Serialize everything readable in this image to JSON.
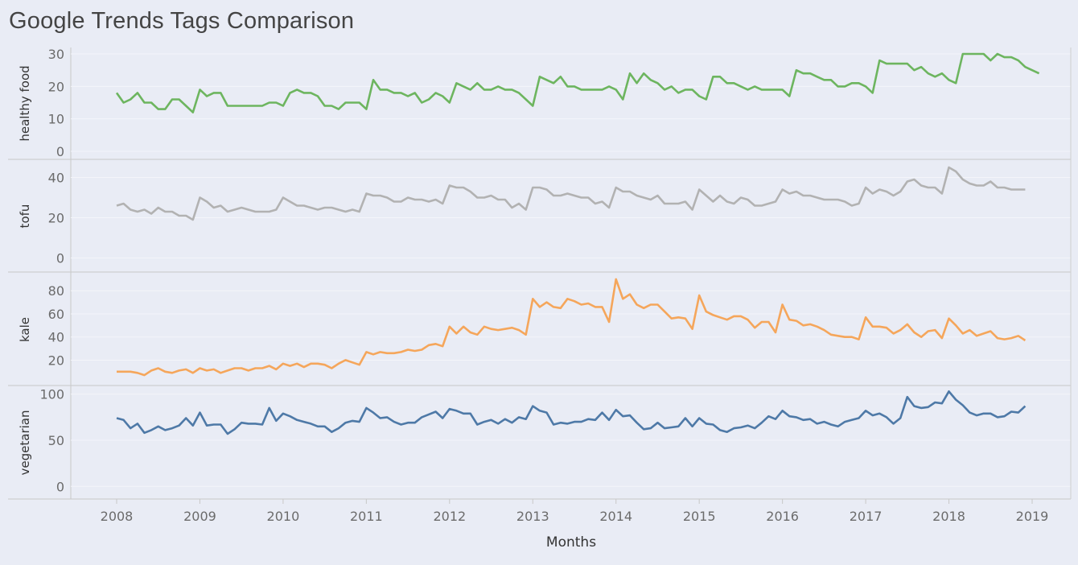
{
  "title": "Google Trends Tags Comparison",
  "chart_data": {
    "type": "line",
    "xlabel": "Months",
    "x_start": "2008-01",
    "x_ticks": [
      "2008",
      "2009",
      "2010",
      "2011",
      "2012",
      "2013",
      "2014",
      "2015",
      "2016",
      "2017",
      "2018",
      "2019"
    ],
    "grid": true,
    "series": [
      {
        "name": "healthy food",
        "color": "#6db55f",
        "yticks": [
          0,
          10,
          20,
          30
        ],
        "ylim": [
          0,
          31
        ],
        "values": [
          18,
          15,
          16,
          18,
          15,
          15,
          13,
          13,
          16,
          16,
          14,
          12,
          19,
          17,
          18,
          18,
          14,
          14,
          14,
          14,
          14,
          14,
          15,
          15,
          14,
          18,
          19,
          18,
          18,
          17,
          14,
          14,
          13,
          15,
          15,
          15,
          13,
          22,
          19,
          19,
          18,
          18,
          17,
          18,
          15,
          16,
          18,
          17,
          15,
          21,
          20,
          19,
          21,
          19,
          19,
          20,
          19,
          19,
          18,
          16,
          14,
          23,
          22,
          21,
          23,
          20,
          20,
          19,
          19,
          19,
          19,
          20,
          19,
          16,
          24,
          21,
          24,
          22,
          21,
          19,
          20,
          18,
          19,
          19,
          17,
          16,
          23,
          23,
          21,
          21,
          20,
          19,
          20,
          19,
          19,
          19,
          19,
          17,
          25,
          24,
          24,
          23,
          22,
          22,
          20,
          20,
          21,
          21,
          20,
          18,
          28,
          27,
          27,
          27,
          27,
          25,
          26,
          24,
          23,
          24,
          22,
          21,
          30,
          30,
          30,
          30,
          28,
          30,
          29,
          29,
          28,
          26,
          25,
          24
        ]
      },
      {
        "name": "tofu",
        "color": "#b2b2b2",
        "yticks": [
          0,
          20,
          40
        ],
        "ylim": [
          -3,
          47
        ],
        "values": [
          26,
          27,
          24,
          23,
          24,
          22,
          25,
          23,
          23,
          21,
          21,
          19,
          30,
          28,
          25,
          26,
          23,
          24,
          25,
          24,
          23,
          23,
          23,
          24,
          30,
          28,
          26,
          26,
          25,
          24,
          25,
          25,
          24,
          23,
          24,
          23,
          32,
          31,
          31,
          30,
          28,
          28,
          30,
          29,
          29,
          28,
          29,
          27,
          36,
          35,
          35,
          33,
          30,
          30,
          31,
          29,
          29,
          25,
          27,
          24,
          35,
          35,
          34,
          31,
          31,
          32,
          31,
          30,
          30,
          27,
          28,
          25,
          35,
          33,
          33,
          31,
          30,
          29,
          31,
          27,
          27,
          27,
          28,
          24,
          34,
          31,
          28,
          31,
          28,
          27,
          30,
          29,
          26,
          26,
          27,
          28,
          34,
          32,
          33,
          31,
          31,
          30,
          29,
          29,
          29,
          28,
          26,
          27,
          35,
          32,
          34,
          33,
          31,
          33,
          38,
          39,
          36,
          35,
          35,
          32,
          45,
          43,
          39,
          37,
          36,
          36,
          38,
          35,
          35,
          34,
          34,
          34
        ]
      },
      {
        "name": "kale",
        "color": "#f5a65b",
        "yticks": [
          20,
          40,
          60,
          80
        ],
        "ylim": [
          5,
          92
        ],
        "values": [
          10,
          10,
          10,
          9,
          7,
          11,
          13,
          10,
          9,
          11,
          12,
          9,
          13,
          11,
          12,
          9,
          11,
          13,
          13,
          11,
          13,
          13,
          15,
          12,
          17,
          15,
          17,
          14,
          17,
          17,
          16,
          13,
          17,
          20,
          18,
          16,
          27,
          25,
          27,
          26,
          26,
          27,
          29,
          28,
          29,
          33,
          34,
          32,
          49,
          43,
          49,
          44,
          42,
          49,
          47,
          46,
          47,
          48,
          46,
          42,
          73,
          66,
          70,
          66,
          65,
          73,
          71,
          68,
          69,
          66,
          66,
          53,
          90,
          73,
          77,
          68,
          65,
          68,
          68,
          62,
          56,
          57,
          56,
          47,
          76,
          62,
          59,
          57,
          55,
          58,
          58,
          55,
          48,
          53,
          53,
          44,
          68,
          55,
          54,
          50,
          51,
          49,
          46,
          42,
          41,
          40,
          40,
          38,
          57,
          49,
          49,
          48,
          43,
          46,
          51,
          44,
          40,
          45,
          46,
          39,
          56,
          50,
          43,
          46,
          41,
          43,
          45,
          39,
          38,
          39,
          41,
          37
        ]
      },
      {
        "name": "vegetarian",
        "color": "#4e79a7",
        "yticks": [
          0,
          50,
          100
        ],
        "ylim": [
          -5,
          105
        ],
        "values": [
          74,
          72,
          63,
          68,
          58,
          61,
          65,
          61,
          63,
          66,
          74,
          66,
          80,
          66,
          67,
          67,
          57,
          62,
          69,
          68,
          68,
          67,
          85,
          71,
          79,
          76,
          72,
          70,
          68,
          65,
          65,
          59,
          63,
          69,
          71,
          70,
          85,
          80,
          74,
          75,
          70,
          67,
          69,
          69,
          75,
          78,
          81,
          74,
          84,
          82,
          79,
          79,
          67,
          70,
          72,
          68,
          73,
          69,
          75,
          73,
          87,
          82,
          80,
          67,
          69,
          68,
          70,
          70,
          73,
          72,
          80,
          72,
          83,
          76,
          77,
          69,
          62,
          63,
          69,
          63,
          64,
          65,
          74,
          65,
          74,
          68,
          67,
          61,
          59,
          63,
          64,
          66,
          63,
          69,
          76,
          73,
          82,
          76,
          75,
          72,
          73,
          68,
          70,
          67,
          65,
          70,
          72,
          74,
          82,
          77,
          79,
          75,
          68,
          74,
          97,
          87,
          85,
          86,
          91,
          90,
          103,
          94,
          88,
          80,
          77,
          79,
          79,
          75,
          76,
          81,
          80,
          87
        ]
      }
    ]
  }
}
